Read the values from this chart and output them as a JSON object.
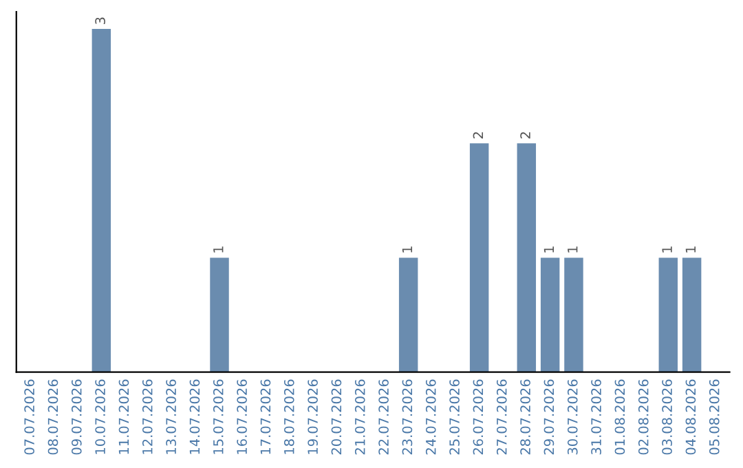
{
  "chart_data": {
    "type": "bar",
    "categories": [
      "07.07.2026",
      "08.07.2026",
      "09.07.2026",
      "10.07.2026",
      "11.07.2026",
      "12.07.2026",
      "13.07.2026",
      "14.07.2026",
      "15.07.2026",
      "16.07.2026",
      "17.07.2026",
      "18.07.2026",
      "19.07.2026",
      "20.07.2026",
      "21.07.2026",
      "22.07.2026",
      "23.07.2026",
      "24.07.2026",
      "25.07.2026",
      "26.07.2026",
      "27.07.2026",
      "28.07.2026",
      "29.07.2026",
      "30.07.2026",
      "31.07.2026",
      "01.08.2026",
      "02.08.2026",
      "03.08.2026",
      "04.08.2026",
      "05.08.2026"
    ],
    "values": [
      0,
      0,
      0,
      3,
      0,
      0,
      0,
      0,
      1,
      0,
      0,
      0,
      0,
      0,
      0,
      0,
      1,
      0,
      0,
      2,
      0,
      2,
      1,
      1,
      0,
      0,
      0,
      1,
      1,
      0
    ],
    "value_labels": [
      null,
      null,
      null,
      "3",
      null,
      null,
      null,
      null,
      "1",
      null,
      null,
      null,
      null,
      null,
      null,
      null,
      "1",
      null,
      null,
      "2",
      null,
      "2",
      "1",
      "1",
      null,
      null,
      null,
      "1",
      "1",
      null
    ],
    "color": "#6a8caf",
    "grid": false,
    "legend": false
  }
}
